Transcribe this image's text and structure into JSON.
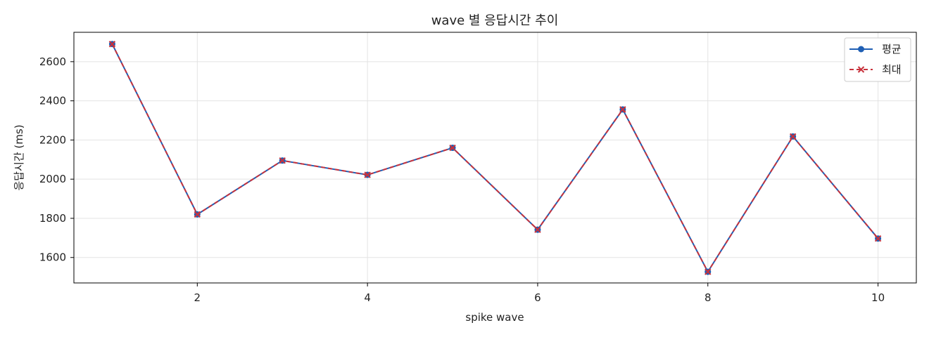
{
  "chart_data": {
    "type": "line",
    "title": "wave 별 응답시간 추이",
    "xlabel": "spike wave",
    "ylabel": "응답시간 (ms)",
    "x": [
      1,
      2,
      3,
      4,
      5,
      6,
      7,
      8,
      9,
      10
    ],
    "xlim": [
      0.55,
      10.45
    ],
    "ylim": [
      1470,
      2750
    ],
    "xticks": [
      2,
      4,
      6,
      8,
      10
    ],
    "yticks": [
      1600,
      1800,
      2000,
      2200,
      2400,
      2600
    ],
    "grid": true,
    "legend_position": "top-right",
    "series": [
      {
        "name": "평균",
        "values": [
          2690,
          1820,
          2095,
          2022,
          2160,
          1742,
          2356,
          1527,
          2218,
          1697
        ],
        "color": "#1f5fb4",
        "line_style": "solid",
        "marker": "circle"
      },
      {
        "name": "최대",
        "values": [
          2690,
          1820,
          2095,
          2022,
          2160,
          1742,
          2356,
          1527,
          2218,
          1697
        ],
        "color": "#c8323c",
        "line_style": "dashed",
        "marker": "x"
      }
    ]
  }
}
